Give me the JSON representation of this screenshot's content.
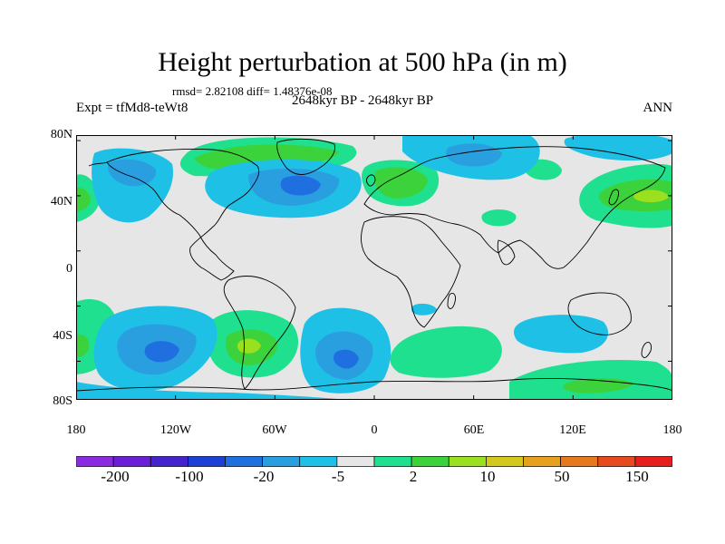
{
  "title": "Height perturbation at 500 hPa (in m)",
  "stats": "rmsd= 2.82108 diff= 1.48376e-08",
  "left_label": "Expt = tfMd8-teWt8",
  "center_label": "2648kyr BP - 2648kyr BP",
  "right_label": "ANN",
  "lat_labels": [
    "80N",
    "40N",
    "0",
    "40S",
    "80S"
  ],
  "lon_labels": [
    "180",
    "120W",
    "60W",
    "0",
    "60E",
    "120E",
    "180"
  ],
  "colorbar": {
    "colors": [
      "#8a2be2",
      "#6a1fd6",
      "#4422cc",
      "#1e3fd6",
      "#1f6fe0",
      "#2a9fe0",
      "#1fc0e6",
      "#e6e6e6",
      "#1ee08f",
      "#3cd23c",
      "#9be01e",
      "#d2c81e",
      "#e6a01e",
      "#e6781e",
      "#e64a1e",
      "#e61e1e"
    ],
    "labels": [
      "-200",
      "-100",
      "-20",
      "-5",
      "2",
      "10",
      "50",
      "150"
    ]
  },
  "map_colors": {
    "background": "#e6e6e6",
    "pos_outer": "#1ee08f",
    "pos_mid": "#3cd23c",
    "pos_inner": "#9be01e",
    "neg_outer": "#1fc0e6",
    "neg_mid": "#2a9fe0",
    "neg_inner": "#1f6fe0",
    "coastline": "#000000"
  }
}
